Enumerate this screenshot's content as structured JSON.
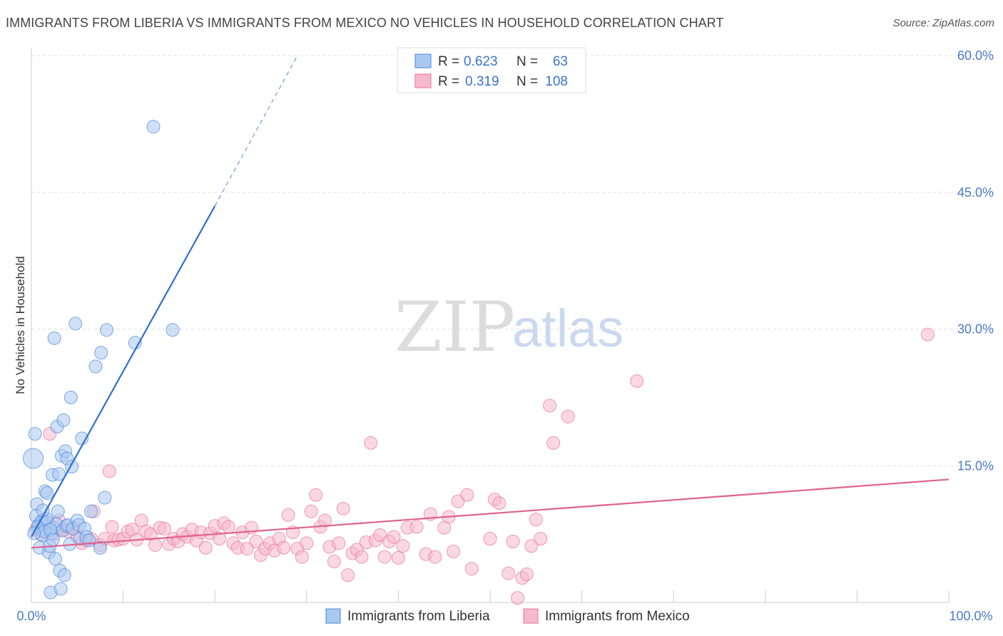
{
  "title": "IMMIGRANTS FROM LIBERIA VS IMMIGRANTS FROM MEXICO NO VEHICLES IN HOUSEHOLD CORRELATION CHART",
  "source": "Source: ZipAtlas.com",
  "watermark": {
    "zip": "ZIP",
    "atlas": "atlas"
  },
  "legend": {
    "rows": [
      {
        "r_label": "R =",
        "r_value": "0.623",
        "n_label": "N =",
        "n_value": "63",
        "color": "#a9c8f0"
      },
      {
        "r_label": "R =",
        "r_value": "0.319",
        "n_label": "N =",
        "n_value": "108",
        "color": "#f5b8cc"
      }
    ]
  },
  "bottom_legend": {
    "items": [
      {
        "label": "Immigrants from Liberia",
        "color": "#a9c8f0"
      },
      {
        "label": "Immigrants from Mexico",
        "color": "#f5b8cc"
      }
    ]
  },
  "chart_data": {
    "type": "scatter",
    "title": "IMMIGRANTS FROM LIBERIA VS IMMIGRANTS FROM MEXICO NO VEHICLES IN HOUSEHOLD CORRELATION CHART",
    "xlabel": "",
    "ylabel": "No Vehicles in Household",
    "xlim": [
      0,
      100
    ],
    "ylim": [
      0,
      60
    ],
    "x_tick_labels": [
      "0.0%",
      "100.0%"
    ],
    "y_ticks": [
      15,
      30,
      45,
      60
    ],
    "y_tick_labels": [
      "15.0%",
      "30.0%",
      "45.0%",
      "60.0%"
    ],
    "grid": true,
    "series": [
      {
        "name": "Immigrants from Liberia",
        "color": "#4a86d8",
        "fill": "#a9c8f0",
        "trend": {
          "x0": 0.0,
          "y0": 7.2,
          "x1": 20.0,
          "y1": 43.5,
          "dash_to_x": 29.0,
          "dash_to_y": 60.0,
          "color": "#2f6fd0"
        },
        "points": [
          [
            0.2,
            15.8,
            14
          ],
          [
            0.4,
            18.5,
            9
          ],
          [
            0.6,
            10.8,
            9
          ],
          [
            0.5,
            9.5,
            9
          ],
          [
            0.8,
            8.5,
            9
          ],
          [
            1.0,
            8.0,
            9
          ],
          [
            0.9,
            6.0,
            9
          ],
          [
            1.2,
            7.4,
            9
          ],
          [
            1.3,
            9.0,
            9
          ],
          [
            1.5,
            12.2,
            9
          ],
          [
            1.7,
            12.0,
            9
          ],
          [
            1.8,
            8.8,
            9
          ],
          [
            1.9,
            5.5,
            9
          ],
          [
            2.0,
            6.2,
            9
          ],
          [
            2.1,
            1.1,
            9
          ],
          [
            2.2,
            7.6,
            9
          ],
          [
            2.3,
            14.0,
            9
          ],
          [
            2.4,
            8.2,
            9
          ],
          [
            2.5,
            29.0,
            9
          ],
          [
            2.6,
            4.8,
            9
          ],
          [
            2.7,
            8.6,
            9
          ],
          [
            2.8,
            19.3,
            9
          ],
          [
            2.9,
            10.0,
            9
          ],
          [
            3.0,
            14.1,
            9
          ],
          [
            3.1,
            3.5,
            9
          ],
          [
            3.2,
            1.5,
            9
          ],
          [
            3.3,
            16.1,
            9
          ],
          [
            3.4,
            7.9,
            9
          ],
          [
            3.5,
            20.0,
            9
          ],
          [
            3.6,
            3.0,
            9
          ],
          [
            3.7,
            16.6,
            9
          ],
          [
            3.8,
            8.4,
            9
          ],
          [
            3.9,
            15.8,
            9
          ],
          [
            4.0,
            8.5,
            9
          ],
          [
            4.2,
            6.4,
            9
          ],
          [
            4.3,
            22.5,
            9
          ],
          [
            4.4,
            14.9,
            9
          ],
          [
            4.5,
            8.1,
            9
          ],
          [
            4.8,
            30.6,
            9
          ],
          [
            5.0,
            9.0,
            9
          ],
          [
            5.2,
            8.5,
            9
          ],
          [
            5.3,
            7.0,
            9
          ],
          [
            5.5,
            18.0,
            9
          ],
          [
            5.8,
            8.1,
            9
          ],
          [
            6.0,
            7.2,
            9
          ],
          [
            6.3,
            6.8,
            9
          ],
          [
            6.5,
            10.0,
            9
          ],
          [
            7.0,
            25.9,
            9
          ],
          [
            7.5,
            6.0,
            9
          ],
          [
            7.6,
            27.4,
            9
          ],
          [
            8.0,
            11.5,
            9
          ],
          [
            8.2,
            29.9,
            9
          ],
          [
            11.3,
            28.5,
            9
          ],
          [
            13.3,
            52.2,
            9
          ],
          [
            15.4,
            29.9,
            9
          ],
          [
            1.1,
            8.9,
            9
          ],
          [
            0.7,
            8.3,
            9
          ],
          [
            1.4,
            7.8,
            9
          ],
          [
            1.6,
            9.2,
            9
          ],
          [
            2.05,
            8.0,
            9
          ],
          [
            0.3,
            7.6,
            9
          ],
          [
            1.25,
            10.1,
            9
          ],
          [
            2.35,
            6.9,
            9
          ]
        ]
      },
      {
        "name": "Immigrants from Mexico",
        "color": "#e8729a",
        "fill": "#f5b8cc",
        "trend": {
          "x0": 0.0,
          "y0": 6.0,
          "x1": 100.0,
          "y1": 13.5,
          "color": "#e0628e"
        },
        "points": [
          [
            0.5,
            8.0,
            9
          ],
          [
            1.0,
            7.5,
            9
          ],
          [
            1.5,
            8.6,
            9
          ],
          [
            2.0,
            18.5,
            9
          ],
          [
            2.5,
            7.5,
            9
          ],
          [
            3.0,
            9.0,
            9
          ],
          [
            3.5,
            8.0,
            9
          ],
          [
            4.0,
            7.8,
            9
          ],
          [
            4.5,
            8.2,
            9
          ],
          [
            5.0,
            7.2,
            9
          ],
          [
            5.5,
            6.5,
            9
          ],
          [
            6.0,
            6.8,
            9
          ],
          [
            6.5,
            7.0,
            9
          ],
          [
            6.8,
            10.0,
            9
          ],
          [
            7.5,
            6.3,
            9
          ],
          [
            8.0,
            7.0,
            9
          ],
          [
            8.5,
            14.4,
            9
          ],
          [
            8.8,
            8.3,
            9
          ],
          [
            9.0,
            6.8,
            9
          ],
          [
            9.5,
            6.9,
            9
          ],
          [
            10.0,
            7.0,
            9
          ],
          [
            10.5,
            7.8,
            9
          ],
          [
            11.0,
            8.0,
            9
          ],
          [
            11.5,
            6.9,
            9
          ],
          [
            12.0,
            9.0,
            9
          ],
          [
            12.5,
            7.8,
            9
          ],
          [
            13.0,
            7.5,
            9
          ],
          [
            13.5,
            6.3,
            9
          ],
          [
            14.0,
            8.2,
            9
          ],
          [
            14.5,
            8.1,
            9
          ],
          [
            15.0,
            6.4,
            9
          ],
          [
            15.5,
            7.0,
            9
          ],
          [
            16.0,
            6.7,
            9
          ],
          [
            16.5,
            7.5,
            9
          ],
          [
            17.0,
            7.2,
            9
          ],
          [
            17.5,
            8.0,
            9
          ],
          [
            18.0,
            6.8,
            9
          ],
          [
            18.5,
            7.7,
            9
          ],
          [
            19.0,
            6.0,
            9
          ],
          [
            19.5,
            7.6,
            9
          ],
          [
            20.0,
            8.4,
            9
          ],
          [
            20.5,
            7.0,
            9
          ],
          [
            21.0,
            8.7,
            9
          ],
          [
            21.5,
            8.3,
            9
          ],
          [
            22.0,
            6.5,
            9
          ],
          [
            22.5,
            6.0,
            9
          ],
          [
            23.0,
            7.7,
            9
          ],
          [
            23.5,
            5.9,
            9
          ],
          [
            24.0,
            8.2,
            9
          ],
          [
            24.5,
            6.7,
            9
          ],
          [
            25.0,
            5.2,
            9
          ],
          [
            25.5,
            5.9,
            9
          ],
          [
            26.0,
            6.5,
            9
          ],
          [
            26.5,
            5.7,
            9
          ],
          [
            27.0,
            7.0,
            9
          ],
          [
            27.5,
            6.0,
            9
          ],
          [
            28.0,
            9.6,
            9
          ],
          [
            28.5,
            7.7,
            9
          ],
          [
            29.0,
            5.9,
            9
          ],
          [
            29.5,
            5.0,
            9
          ],
          [
            30.0,
            6.5,
            9
          ],
          [
            30.5,
            10.0,
            9
          ],
          [
            31.0,
            11.8,
            9
          ],
          [
            31.5,
            8.3,
            9
          ],
          [
            32.0,
            9.0,
            9
          ],
          [
            32.5,
            6.1,
            9
          ],
          [
            33.0,
            4.5,
            9
          ],
          [
            33.5,
            6.5,
            9
          ],
          [
            34.0,
            10.3,
            9
          ],
          [
            34.5,
            3.0,
            9
          ],
          [
            35.0,
            5.4,
            9
          ],
          [
            35.5,
            5.8,
            9
          ],
          [
            36.0,
            5.0,
            9
          ],
          [
            36.5,
            6.6,
            9
          ],
          [
            37.0,
            17.5,
            9
          ],
          [
            37.5,
            6.8,
            9
          ],
          [
            38.0,
            7.4,
            9
          ],
          [
            38.5,
            5.0,
            9
          ],
          [
            39.0,
            6.7,
            9
          ],
          [
            39.5,
            7.2,
            9
          ],
          [
            40.0,
            4.9,
            9
          ],
          [
            40.5,
            6.2,
            9
          ],
          [
            41.0,
            8.2,
            9
          ],
          [
            42.0,
            8.3,
            9
          ],
          [
            43.0,
            5.3,
            9
          ],
          [
            43.5,
            9.7,
            9
          ],
          [
            44.0,
            5.0,
            9
          ],
          [
            45.0,
            8.2,
            9
          ],
          [
            45.5,
            9.4,
            9
          ],
          [
            46.0,
            5.6,
            9
          ],
          [
            46.5,
            11.1,
            9
          ],
          [
            47.5,
            11.8,
            9
          ],
          [
            48.0,
            3.7,
            9
          ],
          [
            50.0,
            7.0,
            9
          ],
          [
            50.5,
            11.3,
            9
          ],
          [
            51.0,
            10.9,
            9
          ],
          [
            52.0,
            3.2,
            9
          ],
          [
            52.5,
            6.7,
            9
          ],
          [
            53.0,
            0.5,
            9
          ],
          [
            53.5,
            2.7,
            9
          ],
          [
            54.0,
            3.1,
            9
          ],
          [
            54.5,
            6.2,
            9
          ],
          [
            55.0,
            9.1,
            9
          ],
          [
            55.5,
            7.0,
            9
          ],
          [
            56.5,
            21.6,
            9
          ],
          [
            56.9,
            17.5,
            9
          ],
          [
            58.5,
            20.4,
            9
          ],
          [
            66.0,
            24.3,
            9
          ],
          [
            97.7,
            29.4,
            9
          ]
        ]
      }
    ]
  }
}
